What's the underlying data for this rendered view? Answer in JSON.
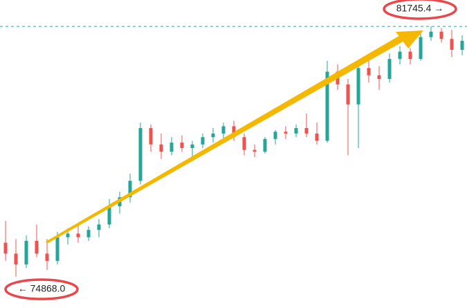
{
  "chart_data": {
    "type": "candlestick",
    "ylim": [
      74100,
      82470
    ],
    "up_color": "#26a69a",
    "down_color": "#ef5350",
    "open": [
      75800,
      75500,
      75200,
      75850,
      75500,
      75300,
      75950,
      76050,
      75950,
      76150,
      76300,
      76800,
      77050,
      77500,
      78950,
      78500,
      78300,
      78550,
      78400,
      78500,
      78700,
      78800,
      79000,
      78700,
      78350,
      78300,
      78650,
      78850,
      78800,
      78950,
      78800,
      78600,
      80500,
      80150,
      79600,
      80600,
      80400,
      80300,
      80850,
      81050,
      80850,
      81450,
      81600,
      81400,
      81100
    ],
    "high": [
      76400,
      75900,
      76000,
      76300,
      75900,
      76100,
      76200,
      76300,
      76250,
      76450,
      77000,
      77200,
      77700,
      79100,
      79050,
      78800,
      78700,
      78750,
      78600,
      78800,
      78950,
      79100,
      79150,
      78800,
      78500,
      78700,
      78900,
      79000,
      79050,
      79350,
      79100,
      80800,
      80700,
      80300,
      80800,
      80900,
      80650,
      81000,
      81200,
      81150,
      81600,
      81745.4,
      81700,
      81650,
      81500
    ],
    "low": [
      75300,
      74868.0,
      75100,
      75400,
      75050,
      75200,
      75750,
      75800,
      75850,
      75950,
      76200,
      76600,
      76900,
      77400,
      78300,
      78100,
      78200,
      78300,
      78150,
      78400,
      78550,
      78650,
      78600,
      78200,
      78150,
      78250,
      78500,
      78650,
      78700,
      78700,
      78500,
      78550,
      80000,
      78200,
      78400,
      80200,
      80000,
      80200,
      80700,
      80700,
      80800,
      81350,
      81300,
      80900,
      80950
    ],
    "close": [
      75500,
      75200,
      75850,
      75500,
      75300,
      75950,
      76050,
      75950,
      76150,
      76300,
      76800,
      77050,
      77500,
      78950,
      78500,
      78300,
      78550,
      78400,
      78500,
      78700,
      78800,
      79000,
      78700,
      78350,
      78300,
      78650,
      78850,
      78800,
      78950,
      78800,
      78600,
      80500,
      80150,
      79600,
      80600,
      80400,
      80300,
      80850,
      81050,
      80850,
      81450,
      81600,
      81400,
      81100,
      81350
    ],
    "annotations": [
      {
        "value": 81745.4,
        "label": "81745.4 →"
      },
      {
        "value": 74868.0,
        "label": "← 74868.0"
      }
    ]
  }
}
